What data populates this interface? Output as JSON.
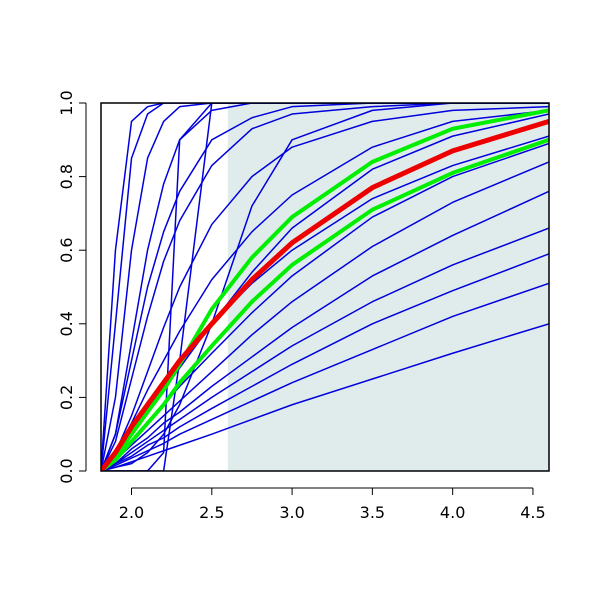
{
  "chart_data": {
    "type": "line",
    "x": [
      1.81,
      1.9,
      2.0,
      2.1,
      2.2,
      2.3,
      2.5,
      2.75,
      3.0,
      3.5,
      4.0,
      4.6
    ],
    "xlim": [
      1.81,
      4.6
    ],
    "ylim": [
      0,
      1
    ],
    "xticks": [
      {
        "value": 2.0,
        "label": "2.0"
      },
      {
        "value": 2.5,
        "label": "2.5"
      },
      {
        "value": 3.0,
        "label": "3.0"
      },
      {
        "value": 3.5,
        "label": "3.5"
      },
      {
        "value": 4.0,
        "label": "4.0"
      },
      {
        "value": 4.5,
        "label": "4.5"
      }
    ],
    "yticks": [
      {
        "value": 0,
        "label": "0.0"
      },
      {
        "value": 0.2,
        "label": "0.2"
      },
      {
        "value": 0.4,
        "label": "0.4"
      },
      {
        "value": 0.6,
        "label": "0.6"
      },
      {
        "value": 0.8,
        "label": "0.8"
      },
      {
        "value": 1,
        "label": "1.0"
      }
    ],
    "shade": {
      "xlim": [
        2.6,
        4.6
      ],
      "color": "#e0ecec"
    },
    "series": [
      {
        "color": "#0000dd",
        "width": 1.5,
        "values": [
          0,
          0.6,
          0.95,
          0.99,
          1,
          1,
          1,
          1,
          1,
          1,
          1,
          1
        ]
      },
      {
        "color": "#0000dd",
        "width": 1.5,
        "values": [
          0,
          0.4,
          0.85,
          0.97,
          1,
          1,
          1,
          1,
          1,
          1,
          1,
          1
        ]
      },
      {
        "color": "#0000dd",
        "width": 1.5,
        "values": [
          0,
          0.2,
          0.6,
          0.85,
          0.95,
          0.99,
          1,
          1,
          1,
          1,
          1,
          1
        ]
      },
      {
        "color": "#0000dd",
        "width": 1.5,
        "values": [
          0,
          0.1,
          0.35,
          0.6,
          0.78,
          0.9,
          0.98,
          1,
          1,
          1,
          1,
          1
        ]
      },
      {
        "color": "#0000dd",
        "width": 1.5,
        "values": [
          0,
          0.08,
          0.25,
          0.42,
          0.57,
          0.68,
          0.83,
          0.93,
          0.97,
          0.99,
          1,
          1
        ]
      },
      {
        "color": "#0000dd",
        "width": 1.5,
        "values": [
          0,
          0.05,
          0.15,
          0.27,
          0.39,
          0.5,
          0.67,
          0.8,
          0.88,
          0.95,
          0.98,
          0.99
        ]
      },
      {
        "color": "#0000dd",
        "width": 1.5,
        "values": [
          0,
          0,
          0,
          0,
          0.05,
          0.9,
          1,
          1,
          1,
          1,
          1,
          1
        ]
      },
      {
        "color": "#0000dd",
        "width": 1.5,
        "values": [
          0,
          0,
          0,
          0,
          0,
          0.3,
          1,
          1,
          1,
          1,
          1,
          1
        ]
      },
      {
        "color": "#0000dd",
        "width": 1.5,
        "values": [
          0,
          0.01,
          0.02,
          0.05,
          0.1,
          0.18,
          0.4,
          0.72,
          0.9,
          0.98,
          1,
          1
        ]
      },
      {
        "color": "#0000dd",
        "width": 1.5,
        "values": [
          0,
          0.04,
          0.1,
          0.16,
          0.22,
          0.28,
          0.4,
          0.54,
          0.66,
          0.82,
          0.91,
          0.97
        ]
      },
      {
        "color": "#0000dd",
        "width": 1.5,
        "values": [
          0,
          0.03,
          0.08,
          0.13,
          0.18,
          0.23,
          0.32,
          0.43,
          0.53,
          0.69,
          0.8,
          0.89
        ]
      },
      {
        "color": "#0000dd",
        "width": 1.5,
        "values": [
          0,
          0.03,
          0.07,
          0.11,
          0.15,
          0.19,
          0.27,
          0.37,
          0.46,
          0.61,
          0.73,
          0.84
        ]
      },
      {
        "color": "#0000dd",
        "width": 1.5,
        "values": [
          0,
          0.02,
          0.06,
          0.09,
          0.13,
          0.16,
          0.23,
          0.31,
          0.39,
          0.53,
          0.64,
          0.76
        ]
      },
      {
        "color": "#0000dd",
        "width": 1.5,
        "values": [
          0,
          0.02,
          0.05,
          0.08,
          0.11,
          0.14,
          0.2,
          0.27,
          0.34,
          0.46,
          0.56,
          0.66
        ]
      },
      {
        "color": "#0000dd",
        "width": 1.5,
        "values": [
          0,
          0.02,
          0.04,
          0.07,
          0.09,
          0.12,
          0.17,
          0.23,
          0.29,
          0.4,
          0.49,
          0.59
        ]
      },
      {
        "color": "#0000dd",
        "width": 1.5,
        "values": [
          0,
          0.015,
          0.035,
          0.055,
          0.075,
          0.1,
          0.14,
          0.19,
          0.24,
          0.33,
          0.42,
          0.51
        ]
      },
      {
        "color": "#0000dd",
        "width": 1.5,
        "values": [
          0,
          0.01,
          0.025,
          0.04,
          0.055,
          0.07,
          0.1,
          0.14,
          0.18,
          0.25,
          0.32,
          0.4
        ]
      },
      {
        "color": "#0000dd",
        "width": 1.5,
        "values": [
          0,
          0.05,
          0.13,
          0.22,
          0.3,
          0.38,
          0.52,
          0.65,
          0.75,
          0.88,
          0.95,
          0.98
        ]
      },
      {
        "color": "#0000dd",
        "width": 1.5,
        "values": [
          0,
          0.04,
          0.1,
          0.17,
          0.23,
          0.29,
          0.4,
          0.51,
          0.6,
          0.74,
          0.83,
          0.91
        ]
      },
      {
        "color": "#0000dd",
        "width": 1.5,
        "values": [
          0,
          0.1,
          0.3,
          0.5,
          0.65,
          0.76,
          0.9,
          0.96,
          0.99,
          1,
          1,
          1
        ]
      },
      {
        "color": "#00ee00",
        "width": 4,
        "values": [
          0,
          0.04,
          0.1,
          0.16,
          0.22,
          0.29,
          0.44,
          0.58,
          0.69,
          0.84,
          0.93,
          0.98
        ]
      },
      {
        "color": "#00ee00",
        "width": 4,
        "values": [
          0,
          0.03,
          0.08,
          0.13,
          0.18,
          0.24,
          0.34,
          0.46,
          0.56,
          0.71,
          0.81,
          0.9
        ]
      },
      {
        "color": "#ee0000",
        "width": 5,
        "values": [
          0,
          0.05,
          0.12,
          0.18,
          0.24,
          0.3,
          0.4,
          0.52,
          0.62,
          0.77,
          0.87,
          0.95
        ]
      }
    ]
  }
}
